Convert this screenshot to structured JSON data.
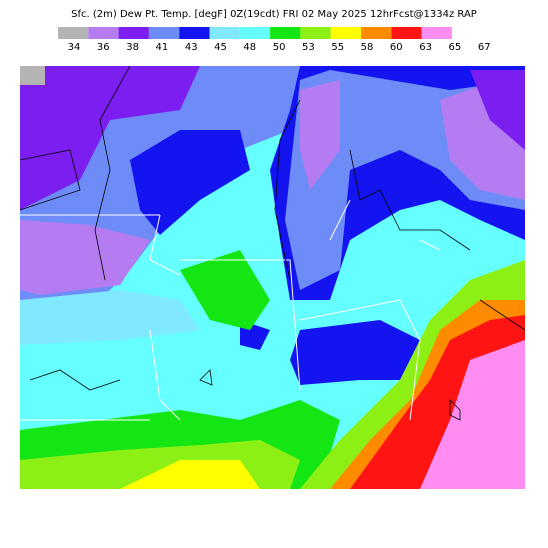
{
  "header": {
    "title": "Sfc. (2m) Dew Pt. Temp. [degF] 0Z(19cdt) FRI 02 May 2025 12hrFcst@1334z RAP"
  },
  "colorbar": {
    "labels": [
      "34",
      "36",
      "38",
      "41",
      "43",
      "45",
      "48",
      "50",
      "53",
      "55",
      "58",
      "60",
      "63",
      "65",
      "67"
    ],
    "colors": [
      "#b4b4b4",
      "#b47cf0",
      "#7d1ef0",
      "#6e8cf8",
      "#1414f0",
      "#80e8ff",
      "#66ffff",
      "#14e614",
      "#8cf014",
      "#ffff00",
      "#ff8c00",
      "#ff1414",
      "#ff8cf0"
    ]
  }
}
